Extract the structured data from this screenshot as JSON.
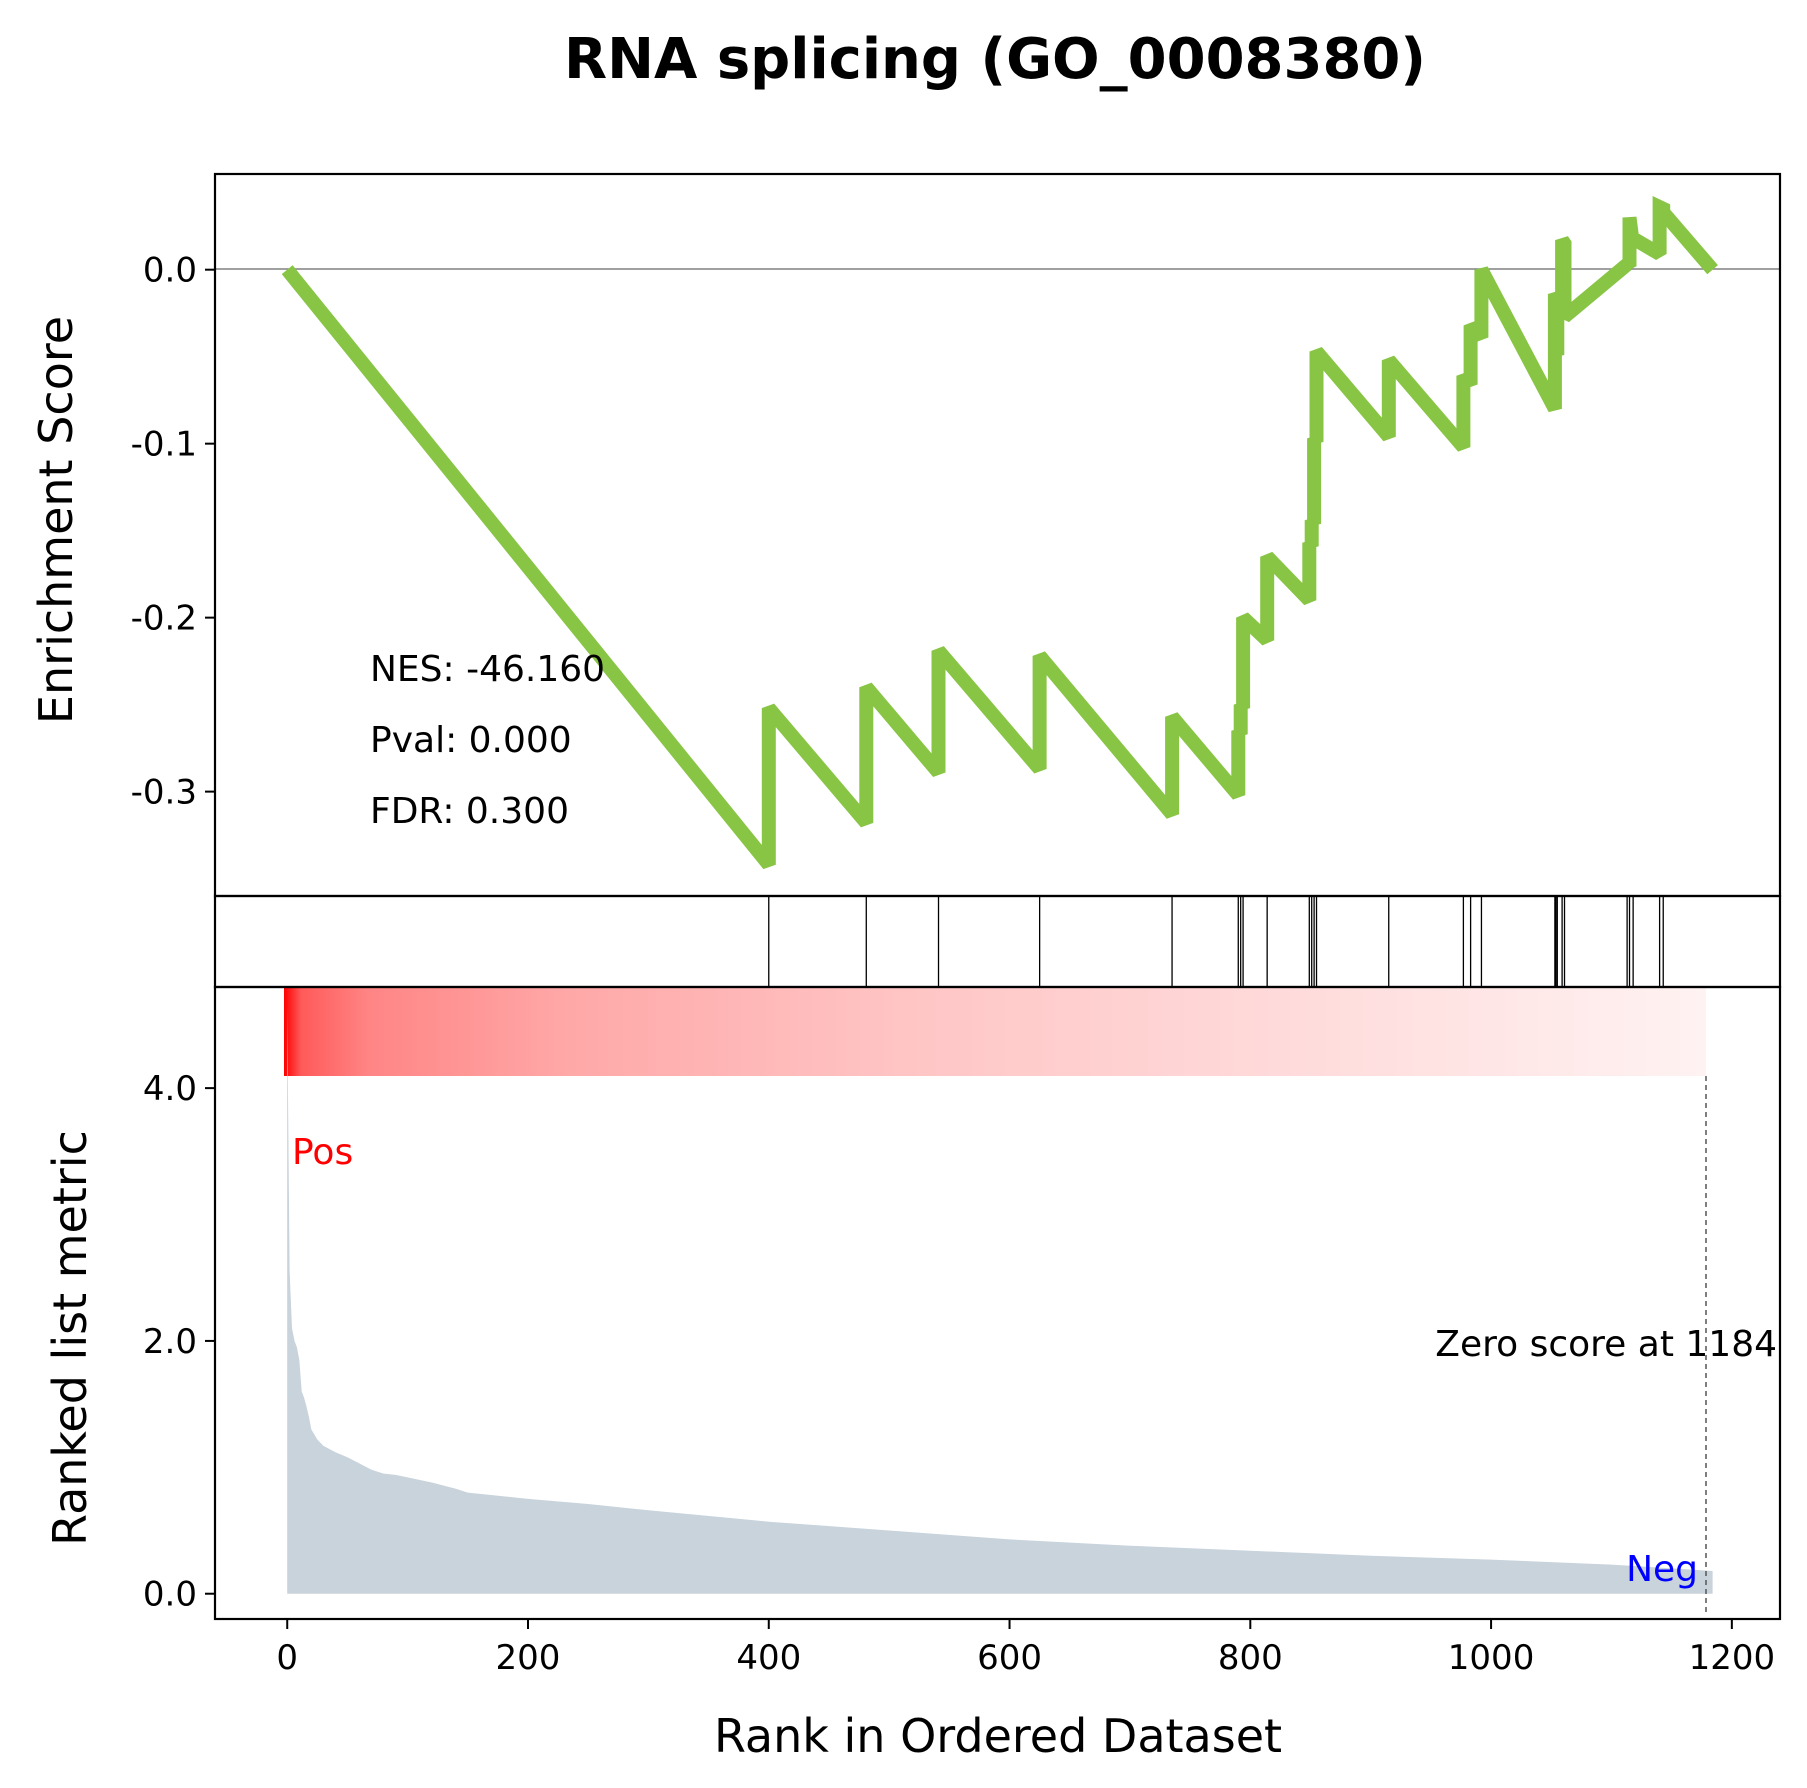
{
  "chart_data": {
    "type": "line",
    "title": "RNA splicing (GO_0008380)",
    "xlabel": "Rank in Ordered Dataset",
    "xlim": [
      -60,
      1240
    ],
    "x_ticks": [
      0,
      200,
      400,
      600,
      800,
      1000,
      1200
    ],
    "x_tick_labels": [
      "0",
      "200",
      "400",
      "600",
      "800",
      "1000",
      "1200"
    ],
    "enrichment": {
      "ylabel": "Enrichment Score",
      "ylim": [
        -0.36,
        0.055
      ],
      "y_ticks": [
        0.0,
        -0.1,
        -0.2,
        -0.3
      ],
      "y_tick_labels": [
        "0.0",
        "-0.1",
        "-0.2",
        "-0.3"
      ],
      "line_color": "#88c544",
      "zero_line_color": "#808080",
      "series": {
        "x": [
          0,
          400,
          400,
          481,
          481,
          541,
          541,
          625,
          625,
          735,
          735,
          790,
          790,
          792,
          792,
          794,
          794,
          814,
          814,
          849,
          849,
          851,
          851,
          853,
          853,
          855,
          855,
          915,
          915,
          977,
          977,
          983,
          983,
          992,
          992,
          1053,
          1053,
          1054,
          1054,
          1055,
          1055,
          1059,
          1059,
          1061,
          1061,
          1113,
          1113,
          1115,
          1115,
          1118,
          1118,
          1140,
          1140,
          1143,
          1143,
          1184
        ],
        "y": [
          0.0,
          -0.342,
          -0.252,
          -0.318,
          -0.24,
          -0.289,
          -0.219,
          -0.287,
          -0.222,
          -0.313,
          -0.257,
          -0.302,
          -0.265,
          -0.267,
          -0.25,
          -0.252,
          -0.2,
          -0.213,
          -0.165,
          -0.19,
          -0.157,
          -0.159,
          -0.144,
          -0.146,
          -0.097,
          -0.099,
          -0.047,
          -0.096,
          -0.052,
          -0.102,
          -0.061,
          -0.066,
          -0.032,
          -0.039,
          0.0,
          -0.08,
          -0.014,
          -0.015,
          -0.048,
          -0.049,
          -0.014,
          -0.017,
          0.017,
          0.015,
          -0.027,
          0.003,
          0.003,
          0.002,
          0.03,
          0.014,
          0.018,
          0.009,
          0.036,
          0.035,
          0.033,
          0.0
        ]
      },
      "stats": {
        "nes": "NES: -46.160",
        "pval": "Pval: 0.000",
        "fdr": "FDR: 0.300"
      }
    },
    "hits": [
      400,
      481,
      541,
      625,
      735,
      790,
      792,
      794,
      814,
      849,
      851,
      853,
      855,
      915,
      977,
      983,
      992,
      1053,
      1054,
      1055,
      1059,
      1061,
      1113,
      1115,
      1118,
      1140,
      1143
    ],
    "ranked_metric": {
      "ylabel": "Ranked list metric",
      "ylim": [
        -0.2,
        4.8
      ],
      "y_ticks": [
        0.0,
        2.0,
        4.0
      ],
      "y_tick_labels": [
        "0.0",
        "2.0",
        "4.0"
      ],
      "fill_color": "#c8d3dc",
      "x": [
        0,
        2,
        4,
        6,
        8,
        10,
        12,
        14,
        16,
        18,
        20,
        25,
        30,
        40,
        50,
        60,
        70,
        80,
        90,
        100,
        120,
        140,
        150,
        200,
        250,
        300,
        400,
        500,
        600,
        700,
        800,
        900,
        1000,
        1100,
        1150,
        1184
      ],
      "values": [
        4.65,
        2.55,
        2.1,
        2.0,
        1.95,
        1.85,
        1.6,
        1.55,
        1.48,
        1.4,
        1.3,
        1.22,
        1.17,
        1.12,
        1.08,
        1.03,
        0.98,
        0.95,
        0.94,
        0.92,
        0.88,
        0.83,
        0.8,
        0.75,
        0.71,
        0.66,
        0.57,
        0.5,
        0.43,
        0.38,
        0.34,
        0.3,
        0.27,
        0.23,
        0.2,
        0.18
      ],
      "pos_label": "Pos",
      "neg_label": "Neg",
      "pos_color": "#ff0000",
      "neg_color": "#0000ff",
      "zero_score_rank": 1184,
      "zero_score_label": "Zero score at 1184"
    },
    "heatmap_colors": {
      "start": "#ff0000",
      "end": "#fff2f2"
    }
  }
}
